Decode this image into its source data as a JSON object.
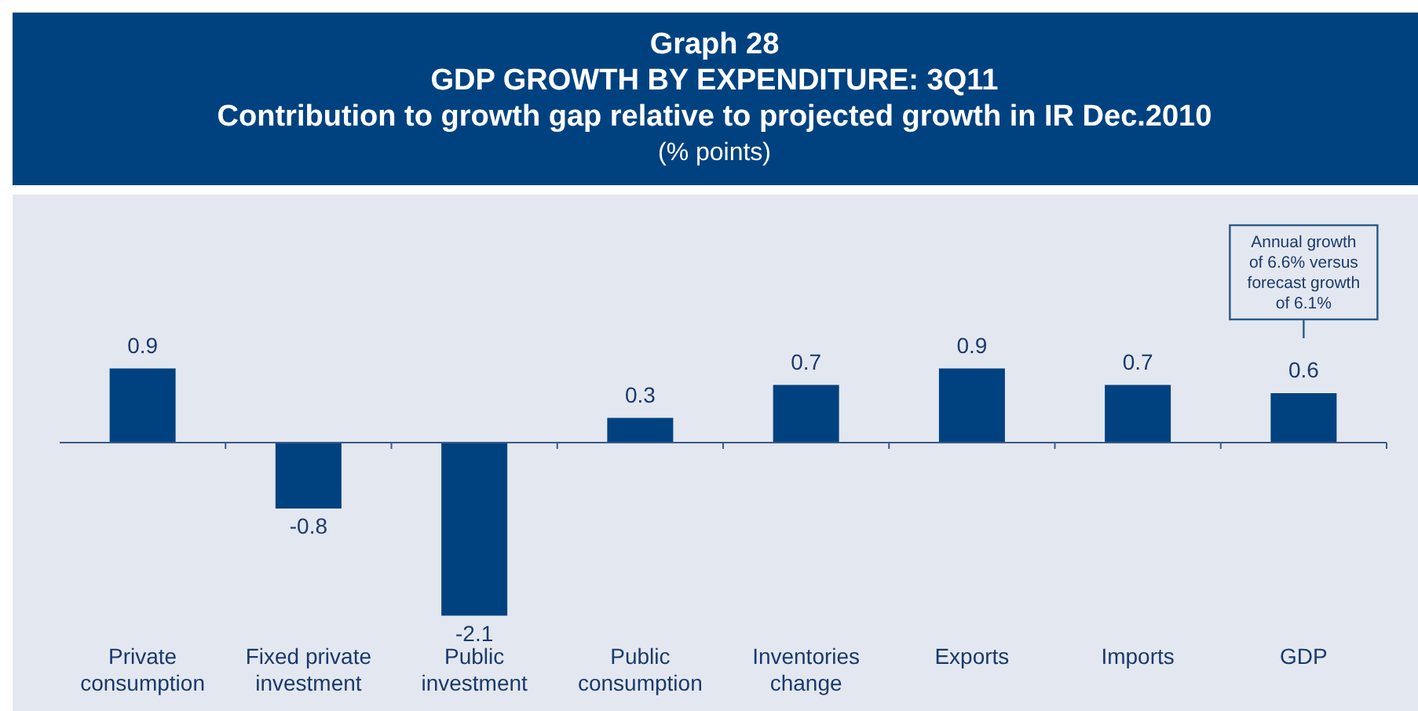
{
  "chart_data": {
    "type": "bar",
    "title": "Graph 28\nGDP GROWTH BY EXPENDITURE: 3Q11\nContribution to growth gap relative to projected growth in IR Dec.2010",
    "subtitle": "(% points)",
    "categories": [
      "Private consumption",
      "Fixed private investment",
      "Public investment",
      "Public consumption",
      "Inventories change",
      "Exports",
      "Imports",
      "GDP"
    ],
    "values": [
      0.9,
      -0.8,
      -2.1,
      0.3,
      0.7,
      0.9,
      0.7,
      0.6
    ],
    "color": "#00427f",
    "data_labels": true,
    "ref_lines": [
      {
        "axis": "y",
        "value": 0,
        "color": "#3a5a8a"
      }
    ],
    "annotations": [
      "Annual growth of 6.6% versus forecast growth of 6.1%"
    ]
  }
}
